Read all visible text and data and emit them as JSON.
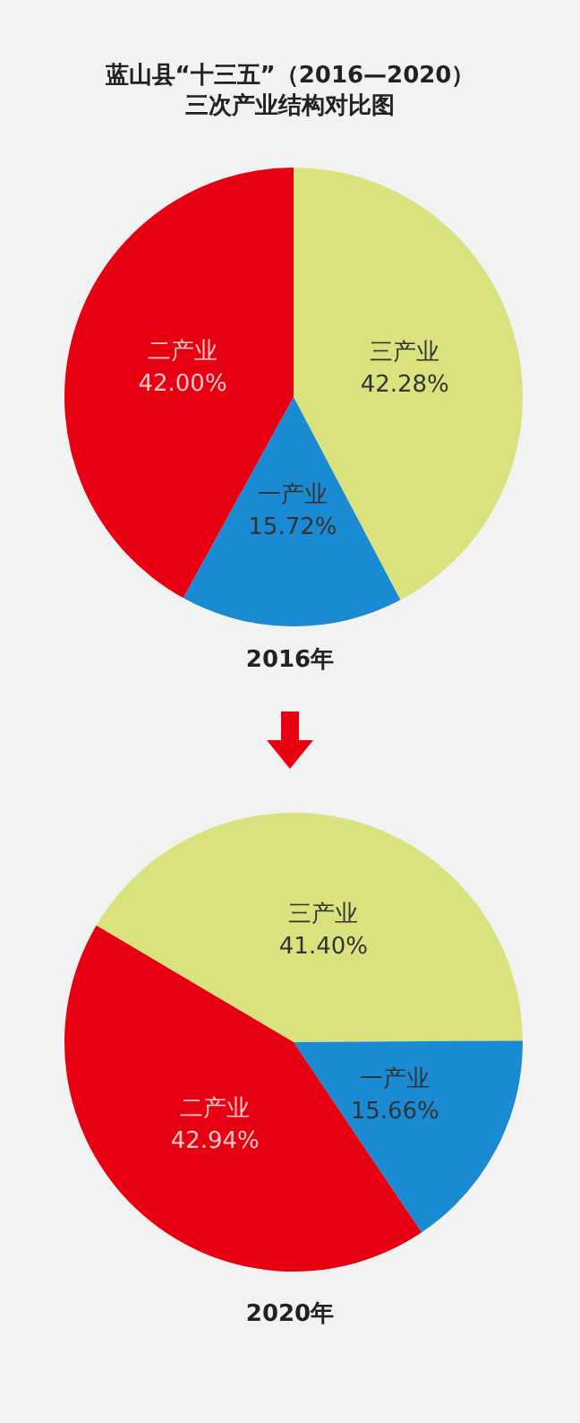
{
  "chart_data": [
    {
      "type": "pie",
      "title": "蓝山县“十三五”（2016—2020）",
      "subtitle": "三次产业结构对比图",
      "xlabel": "2016年",
      "categories": [
        "三产业",
        "一产业",
        "二产业"
      ],
      "values": [
        42.28,
        15.72,
        42.0
      ],
      "colors": [
        "#d9e27c",
        "#1a8bd2",
        "#e60012"
      ],
      "value_labels": [
        "42.28%",
        "15.72%",
        "42.00%"
      ],
      "legend": false
    },
    {
      "type": "pie",
      "xlabel": "2020年",
      "categories": [
        "三产业",
        "一产业",
        "二产业"
      ],
      "values": [
        41.4,
        15.66,
        42.94
      ],
      "colors": [
        "#d9e27c",
        "#1a8bd2",
        "#e60012"
      ],
      "value_labels": [
        "41.40%",
        "15.66%",
        "42.94%"
      ],
      "legend": false
    }
  ]
}
